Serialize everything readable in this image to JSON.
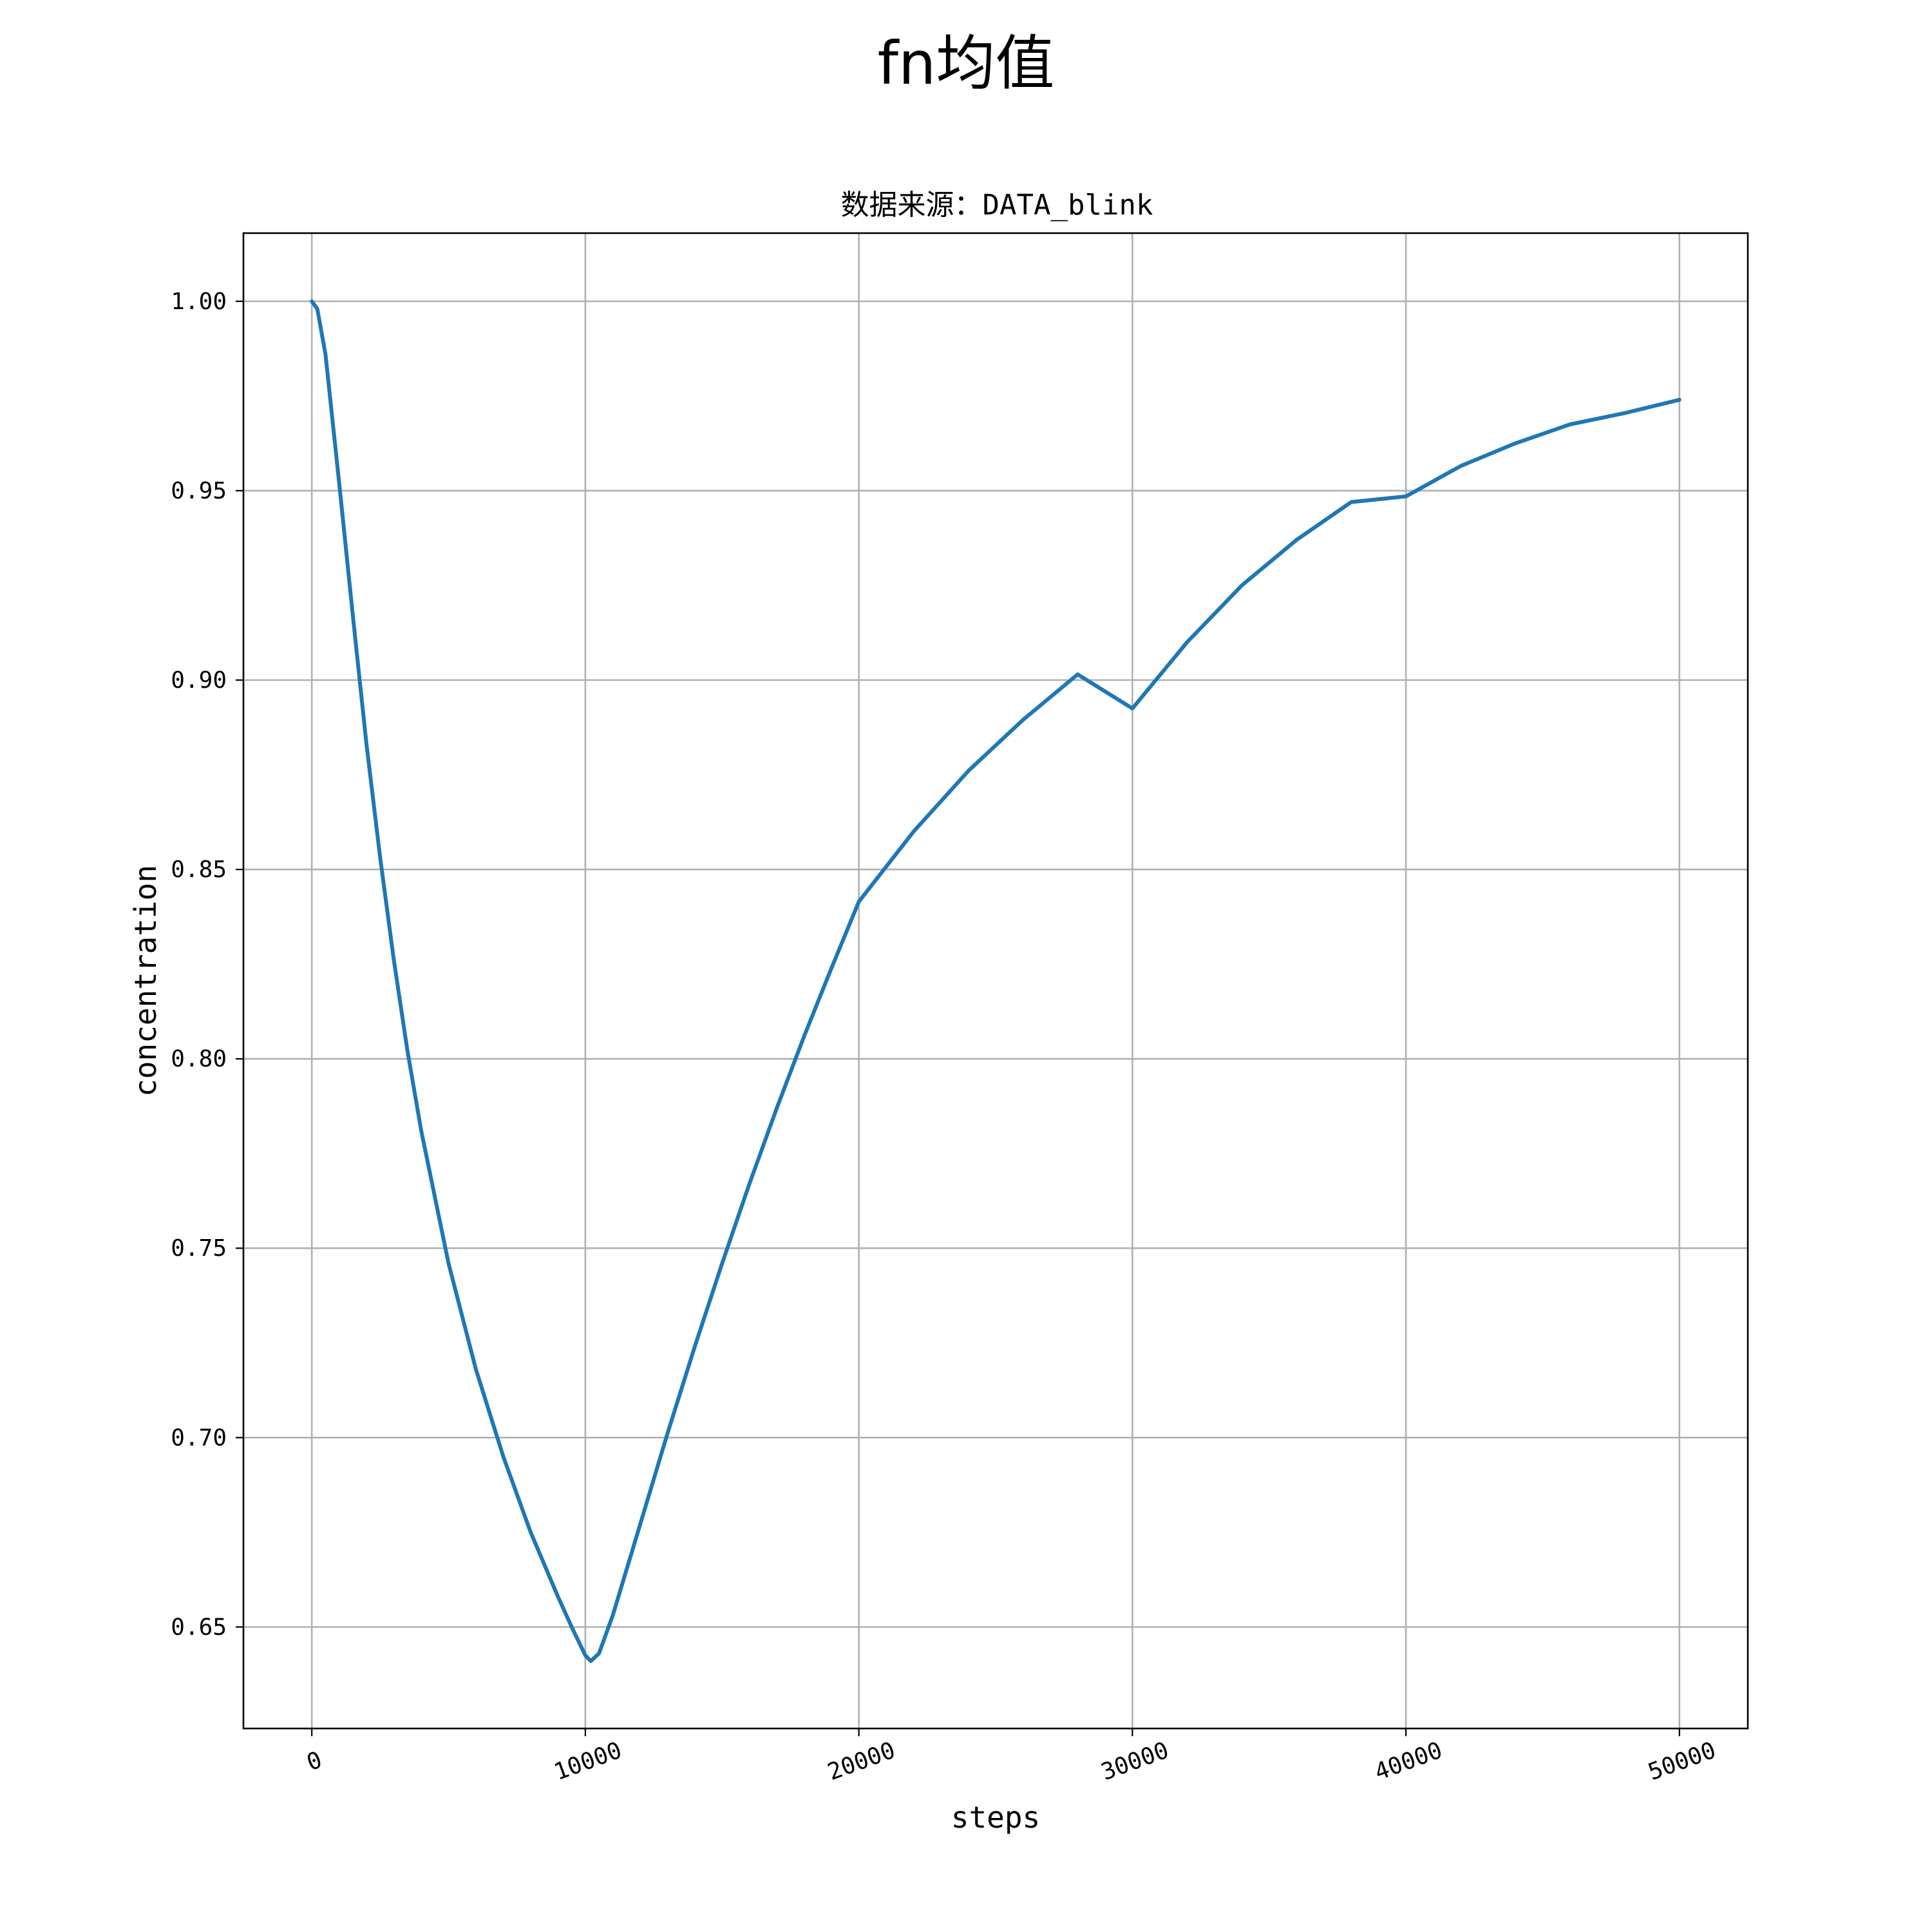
{
  "figure": {
    "suptitle": "fn均值"
  },
  "chart_data": {
    "type": "line",
    "title": "数据来源：DATA_blink",
    "xlabel": "steps",
    "ylabel": "concentration",
    "xlim": [
      -2500,
      52500
    ],
    "ylim": [
      0.6232,
      1.018
    ],
    "xticks": [
      0,
      10000,
      20000,
      30000,
      40000,
      50000
    ],
    "xtick_labels": [
      "0",
      "10000",
      "20000",
      "30000",
      "40000",
      "50000"
    ],
    "yticks": [
      0.65,
      0.7,
      0.75,
      0.8,
      0.85,
      0.9,
      0.95,
      1.0
    ],
    "ytick_labels": [
      "0.65",
      "0.70",
      "0.75",
      "0.80",
      "0.85",
      "0.90",
      "0.95",
      "1.00"
    ],
    "grid": true,
    "series": [
      {
        "color": "#1f77b4",
        "x": [
          0,
          200,
          500,
          1000,
          1500,
          2000,
          2500,
          3000,
          3500,
          4000,
          5000,
          6000,
          7000,
          8000,
          9000,
          9500,
          10000,
          10200,
          10500,
          11000,
          12000,
          13000,
          14000,
          15000,
          16000,
          17000,
          18000,
          19000,
          20000,
          22000,
          24000,
          26000,
          28000,
          30000,
          32000,
          34000,
          36000,
          38000,
          40000,
          42000,
          44000,
          46000,
          48000,
          50000
        ],
        "y": [
          1.0,
          0.998,
          0.986,
          0.952,
          0.917,
          0.883,
          0.853,
          0.826,
          0.802,
          0.781,
          0.746,
          0.718,
          0.695,
          0.675,
          0.658,
          0.65,
          0.6425,
          0.641,
          0.643,
          0.653,
          0.677,
          0.701,
          0.724,
          0.746,
          0.767,
          0.787,
          0.806,
          0.824,
          0.8415,
          0.86,
          0.876,
          0.8895,
          0.9015,
          0.8925,
          0.91,
          0.925,
          0.937,
          0.947,
          0.9485,
          0.9565,
          0.9625,
          0.9675,
          0.9705,
          0.974
        ]
      }
    ]
  }
}
